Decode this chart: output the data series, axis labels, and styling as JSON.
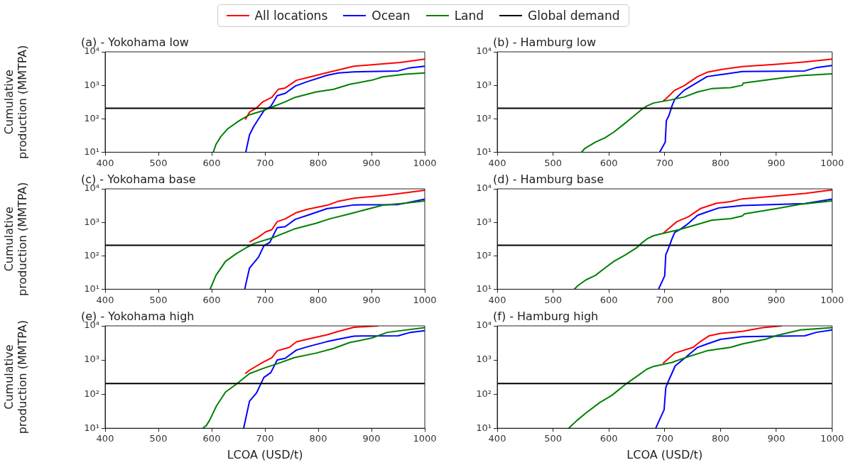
{
  "chart_data": [
    {
      "type": "line",
      "title": "(a) - Yokohama low",
      "ylabel": "Cumulative production (MMTPA)",
      "log": "y",
      "legend": "top",
      "xlim": [
        400,
        1000
      ],
      "xticks": [
        400,
        500,
        600,
        700,
        800,
        900,
        1000
      ],
      "ylim": [
        10,
        10000
      ],
      "yticks": [
        {
          "value": 10,
          "label": "10¹"
        },
        {
          "value": 100,
          "label": "10²"
        },
        {
          "value": 1000,
          "label": "10³"
        },
        {
          "value": 10000,
          "label": "10⁴"
        }
      ],
      "series": [
        {
          "name": "All locations",
          "color": "#ff0000",
          "x": [
            663,
            671,
            684,
            696,
            709,
            713,
            725,
            738,
            759,
            780,
            817,
            838,
            867,
            921,
            954,
            1000
          ],
          "values": [
            94,
            158,
            209,
            322,
            407,
            437,
            760,
            832,
            1410,
            1700,
            2400,
            2880,
            3720,
            4370,
            4790,
            6030
          ]
        },
        {
          "name": "Ocean",
          "color": "#0000ff",
          "x": [
            664,
            671,
            679,
            698,
            711,
            723,
            738,
            757,
            780,
            817,
            838,
            867,
            950,
            971,
            1000
          ],
          "values": [
            10,
            33,
            59,
            174,
            235,
            490,
            575,
            955,
            1290,
            2000,
            2340,
            2510,
            2690,
            3310,
            3720
          ]
        },
        {
          "name": "Land",
          "color": "#008000",
          "x": [
            603,
            608,
            617,
            630,
            651,
            671,
            696,
            717,
            738,
            755,
            796,
            829,
            859,
            900,
            921,
            963,
            1000
          ],
          "values": [
            10,
            17,
            29,
            50,
            86,
            131,
            174,
            235,
            322,
            427,
            631,
            760,
            1070,
            1410,
            1780,
            2140,
            2340
          ]
        }
      ],
      "ref_lines": [
        {
          "axis": "y",
          "value": 205,
          "label": "Global demand",
          "color": "#000000"
        }
      ]
    },
    {
      "type": "line",
      "title": "(b) - Hamburg low",
      "log": "y",
      "xlim": [
        400,
        1000
      ],
      "xticks": [
        400,
        500,
        600,
        700,
        800,
        900,
        1000
      ],
      "ylim": [
        10,
        10000
      ],
      "yticks": [
        {
          "value": 10,
          "label": "10¹"
        },
        {
          "value": 100,
          "label": "10²"
        },
        {
          "value": 1000,
          "label": "10³"
        },
        {
          "value": 10000,
          "label": "10⁴"
        }
      ],
      "series": [
        {
          "color": "#ff0000",
          "x": [
            697,
            701,
            718,
            735,
            759,
            776,
            801,
            839,
            901,
            951,
            1000
          ],
          "values": [
            340,
            380,
            710,
            980,
            1820,
            2450,
            2950,
            3630,
            4270,
            5010,
            6030
          ]
        },
        {
          "color": "#0000ff",
          "x": [
            691,
            701,
            703,
            708,
            713,
            718,
            735,
            759,
            776,
            801,
            839,
            951,
            972,
            1000
          ],
          "values": [
            10,
            20,
            87,
            129,
            240,
            380,
            710,
            1230,
            1820,
            2090,
            2570,
            2690,
            3390,
            3890
          ]
        },
        {
          "color": "#008000",
          "x": [
            551,
            557,
            576,
            593,
            609,
            627,
            647,
            659,
            668,
            680,
            710,
            735,
            759,
            784,
            818,
            839,
            841,
            901,
            943,
            1000
          ],
          "values": [
            10,
            13,
            20,
            27,
            40,
            69,
            129,
            191,
            240,
            295,
            363,
            447,
            631,
            794,
            851,
            1000,
            1170,
            1590,
            1950,
            2190
          ]
        }
      ],
      "ref_lines": [
        {
          "axis": "y",
          "value": 205,
          "color": "#000000"
        }
      ]
    },
    {
      "type": "line",
      "title": "(c) - Yokohama base",
      "ylabel": "Cumulative production (MMTPA)",
      "log": "y",
      "xlim": [
        400,
        1000
      ],
      "xticks": [
        400,
        500,
        600,
        700,
        800,
        900,
        1000
      ],
      "ylim": [
        10,
        10000
      ],
      "yticks": [
        {
          "value": 10,
          "label": "10¹"
        },
        {
          "value": 100,
          "label": "10²"
        },
        {
          "value": 1000,
          "label": "10³"
        },
        {
          "value": 10000,
          "label": "10⁴"
        }
      ],
      "series": [
        {
          "color": "#ff0000",
          "x": [
            671,
            688,
            701,
            713,
            723,
            738,
            759,
            780,
            817,
            838,
            867,
            921,
            954,
            1000
          ],
          "values": [
            257,
            363,
            513,
            603,
            1050,
            1260,
            1950,
            2450,
            3240,
            4270,
            5250,
            6310,
            7240,
            9120
          ]
        },
        {
          "color": "#0000ff",
          "x": [
            662,
            671,
            688,
            698,
            709,
            723,
            738,
            757,
            780,
            817,
            838,
            867,
            950,
            1000
          ],
          "values": [
            10,
            43,
            91,
            200,
            251,
            692,
            741,
            1230,
            1620,
            2570,
            2820,
            3310,
            3390,
            4900
          ]
        },
        {
          "color": "#008000",
          "x": [
            597,
            608,
            626,
            646,
            667,
            680,
            713,
            755,
            796,
            821,
            863,
            921,
            963,
            1000
          ],
          "values": [
            10,
            26,
            68,
            115,
            182,
            234,
            339,
            631,
            933,
            1260,
            1860,
            3240,
            3720,
            4370
          ]
        }
      ],
      "ref_lines": [
        {
          "axis": "y",
          "value": 205,
          "color": "#000000"
        }
      ]
    },
    {
      "type": "line",
      "title": "(d) - Hamburg base",
      "log": "y",
      "xlim": [
        400,
        1000
      ],
      "xticks": [
        400,
        500,
        600,
        700,
        800,
        900,
        1000
      ],
      "ylim": [
        10,
        10000
      ],
      "yticks": [
        {
          "value": 10,
          "label": "10¹"
        },
        {
          "value": 100,
          "label": "10²"
        },
        {
          "value": 1000,
          "label": "10³"
        },
        {
          "value": 10000,
          "label": "10⁴"
        }
      ],
      "series": [
        {
          "color": "#ff0000",
          "x": [
            697,
            709,
            722,
            743,
            764,
            793,
            818,
            839,
            901,
            951,
            1000
          ],
          "values": [
            468,
            692,
            1050,
            1480,
            2570,
            3720,
            4170,
            5010,
            6170,
            7240,
            9330
          ]
        },
        {
          "color": "#0000ff",
          "x": [
            689,
            700,
            702,
            707,
            713,
            718,
            726,
            739,
            759,
            776,
            797,
            839,
            951,
            1000
          ],
          "values": [
            10,
            25,
            107,
            170,
            316,
            501,
            589,
            832,
            1620,
            2040,
            2690,
            3160,
            3630,
            4900
          ]
        },
        {
          "color": "#008000",
          "x": [
            538,
            545,
            559,
            576,
            593,
            609,
            630,
            649,
            659,
            668,
            680,
            697,
            726,
            759,
            784,
            818,
            839,
            843,
            901,
            943,
            1000
          ],
          "values": [
            10,
            13,
            19,
            26,
            43,
            68,
            107,
            170,
            240,
            316,
            398,
            468,
            603,
            871,
            1150,
            1290,
            1550,
            1780,
            2570,
            3470,
            4370
          ]
        }
      ],
      "ref_lines": [
        {
          "axis": "y",
          "value": 205,
          "color": "#000000"
        }
      ]
    },
    {
      "type": "line",
      "title": "(e) - Yokohama high",
      "ylabel": "Cumulative production (MMTPA)",
      "xlabel": "LCOA (USD/t)",
      "log": "y",
      "xlim": [
        400,
        1000
      ],
      "xticks": [
        400,
        500,
        600,
        700,
        800,
        900,
        1000
      ],
      "ylim": [
        10,
        10000
      ],
      "yticks": [
        {
          "value": 10,
          "label": "10¹"
        },
        {
          "value": 100,
          "label": "10²"
        },
        {
          "value": 1000,
          "label": "10³"
        },
        {
          "value": 10000,
          "label": "10⁴"
        }
      ],
      "series": [
        {
          "color": "#ff0000",
          "x": [
            663,
            671,
            696,
            713,
            723,
            746,
            759,
            780,
            817,
            838,
            867,
            913
          ],
          "values": [
            398,
            501,
            851,
            1170,
            1860,
            2340,
            3390,
            4070,
            5500,
            6920,
            9120,
            10000
          ]
        },
        {
          "color": "#0000ff",
          "x": [
            660,
            671,
            684,
            692,
            698,
            711,
            723,
            738,
            759,
            780,
            817,
            838,
            867,
            950,
            971,
            1000
          ],
          "values": [
            10,
            62,
            107,
            195,
            309,
            427,
            1000,
            1120,
            1950,
            2450,
            3470,
            4070,
            5010,
            5130,
            6310,
            7240
          ]
        },
        {
          "color": "#008000",
          "x": [
            583,
            590,
            596,
            609,
            626,
            646,
            671,
            696,
            725,
            755,
            796,
            829,
            859,
            900,
            930,
            1000
          ],
          "values": [
            10,
            12,
            17,
            45,
            115,
            195,
            398,
            562,
            794,
            1170,
            1590,
            2190,
            3240,
            4370,
            6460,
            8910
          ]
        }
      ],
      "ref_lines": [
        {
          "axis": "y",
          "value": 205,
          "color": "#000000"
        }
      ]
    },
    {
      "type": "line",
      "title": "(f) - Hamburg high",
      "xlabel": "LCOA (USD/t)",
      "log": "y",
      "xlim": [
        400,
        1000
      ],
      "xticks": [
        400,
        500,
        600,
        700,
        800,
        900,
        1000
      ],
      "ylim": [
        10,
        10000
      ],
      "yticks": [
        {
          "value": 10,
          "label": "10¹"
        },
        {
          "value": 100,
          "label": "10²"
        },
        {
          "value": 1000,
          "label": "10³"
        },
        {
          "value": 10000,
          "label": "10⁴"
        }
      ],
      "series": [
        {
          "color": "#ff0000",
          "x": [
            697,
            718,
            751,
            764,
            780,
            801,
            839,
            876,
            910
          ],
          "values": [
            800,
            1590,
            2340,
            3470,
            5130,
            6030,
            6920,
            8910,
            10000
          ]
        },
        {
          "color": "#0000ff",
          "x": [
            684,
            699,
            702,
            708,
            719,
            735,
            759,
            776,
            801,
            839,
            951,
            972,
            1000
          ],
          "values": [
            10,
            35,
            155,
            269,
            676,
            1100,
            2340,
            2950,
            4070,
            4790,
            5130,
            6460,
            7590
          ]
        },
        {
          "color": "#008000",
          "x": [
            528,
            543,
            559,
            584,
            605,
            630,
            651,
            668,
            680,
            713,
            743,
            776,
            818,
            839,
            881,
            901,
            943,
            1000
          ],
          "values": [
            10,
            17,
            28,
            57,
            91,
            195,
            339,
            537,
            646,
            851,
            1260,
            1860,
            2340,
            2950,
            4070,
            5250,
            7590,
            8910
          ]
        }
      ],
      "ref_lines": [
        {
          "axis": "y",
          "value": 205,
          "color": "#000000"
        }
      ]
    }
  ]
}
